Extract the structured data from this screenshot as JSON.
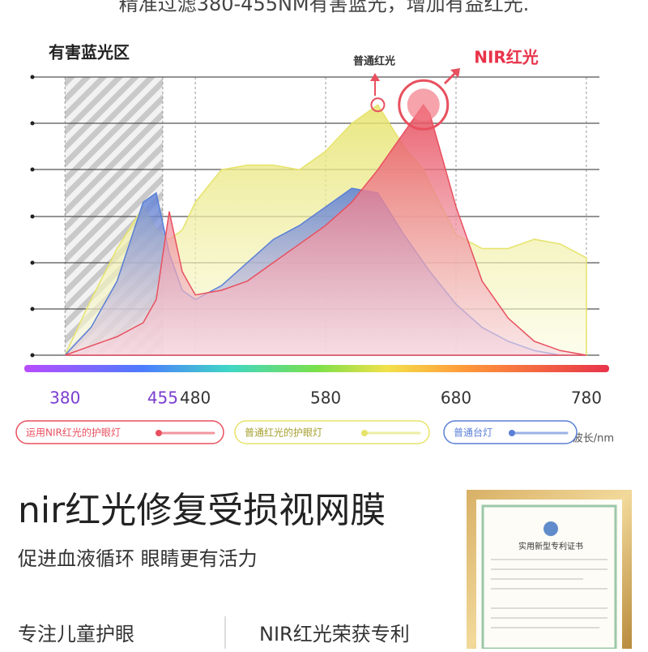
{
  "header": {
    "title": "精准过滤380-455NM有害蓝光，增加有益红光."
  },
  "chart_data": {
    "type": "area",
    "zone_label": "有害蓝光区",
    "annotations": [
      "普通红光",
      "NIR红光"
    ],
    "x_unit_label": "波长/nm",
    "x": [
      380,
      400,
      420,
      440,
      450,
      460,
      470,
      480,
      500,
      520,
      540,
      560,
      580,
      600,
      620,
      640,
      655,
      660,
      680,
      700,
      720,
      740,
      760,
      780
    ],
    "xlim": [
      355,
      790
    ],
    "xticks": [
      380,
      455,
      480,
      580,
      680,
      780
    ],
    "ylim": [
      0,
      6
    ],
    "series": [
      {
        "name": "普通红光的护眼灯",
        "color": "#e6e36a",
        "values": [
          0,
          1.2,
          2.3,
          3.2,
          2.7,
          2.5,
          2.7,
          3.3,
          4.0,
          4.1,
          4.1,
          4.0,
          4.4,
          5.0,
          5.4,
          4.5,
          4.0,
          3.7,
          2.6,
          2.3,
          2.3,
          2.5,
          2.4,
          2.1
        ]
      },
      {
        "name": "普通台灯",
        "color": "#5a7fd6",
        "values": [
          0,
          0.6,
          1.6,
          3.3,
          3.5,
          2.2,
          1.4,
          1.2,
          1.5,
          2.0,
          2.5,
          2.8,
          3.2,
          3.6,
          3.5,
          2.6,
          2.0,
          1.8,
          1.1,
          0.6,
          0.3,
          0.1,
          0,
          0
        ]
      },
      {
        "name": "运用NIR红光的护眼灯",
        "color": "#e8505f",
        "values": [
          0,
          0.2,
          0.4,
          0.7,
          1.2,
          3.1,
          1.8,
          1.3,
          1.4,
          1.6,
          2.0,
          2.4,
          2.8,
          3.3,
          4.0,
          4.8,
          5.4,
          5.2,
          3.2,
          1.6,
          0.8,
          0.3,
          0.1,
          0
        ]
      }
    ]
  },
  "feature": {
    "title": "nir红光修复受损视网膜",
    "subtitle": "促进血液循环 眼睛更有活力",
    "left": "专注儿童护眼",
    "right": "NIR红光荣获专利",
    "certificate": "实用新型专利证书"
  }
}
